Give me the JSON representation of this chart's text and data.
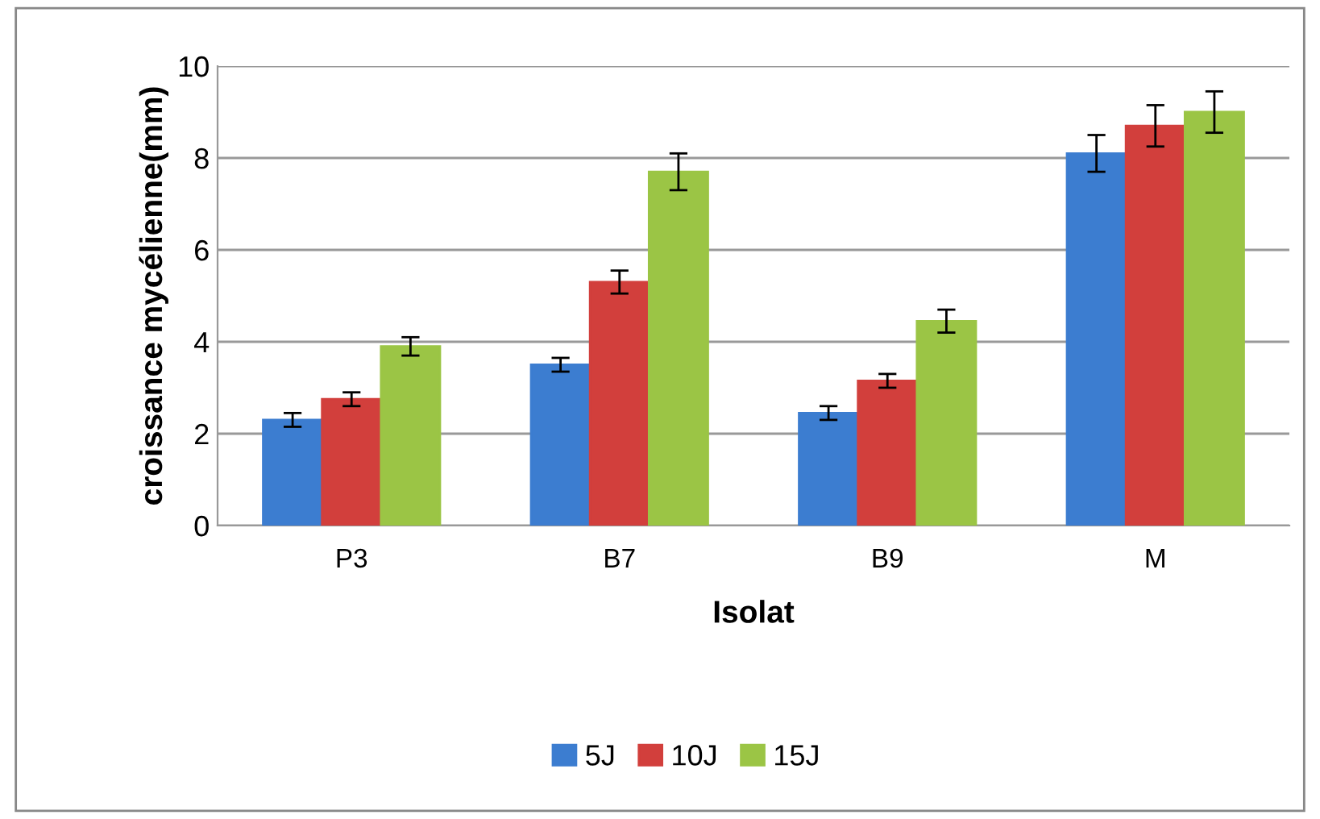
{
  "chart_data": {
    "type": "bar",
    "xlabel": "Isolat",
    "ylabel": "croissance mycélienne(mm)",
    "categories": [
      "P3",
      "B7",
      "B9",
      "M"
    ],
    "series": [
      {
        "name": "5J",
        "color": "#3c7dd0",
        "values": [
          2.3,
          3.5,
          2.45,
          8.1
        ],
        "errors": [
          0.15,
          0.15,
          0.15,
          0.4
        ]
      },
      {
        "name": "10J",
        "color": "#d23f3c",
        "values": [
          2.75,
          5.3,
          3.15,
          8.7
        ],
        "errors": [
          0.15,
          0.25,
          0.15,
          0.45
        ]
      },
      {
        "name": "15J",
        "color": "#9bc545",
        "values": [
          3.9,
          7.7,
          4.45,
          9.0
        ],
        "errors": [
          0.2,
          0.4,
          0.25,
          0.45
        ]
      }
    ],
    "ylim": [
      0,
      10
    ],
    "yticks": [
      0,
      2,
      4,
      6,
      8,
      10
    ],
    "grid": "y",
    "legend": "bottom"
  }
}
